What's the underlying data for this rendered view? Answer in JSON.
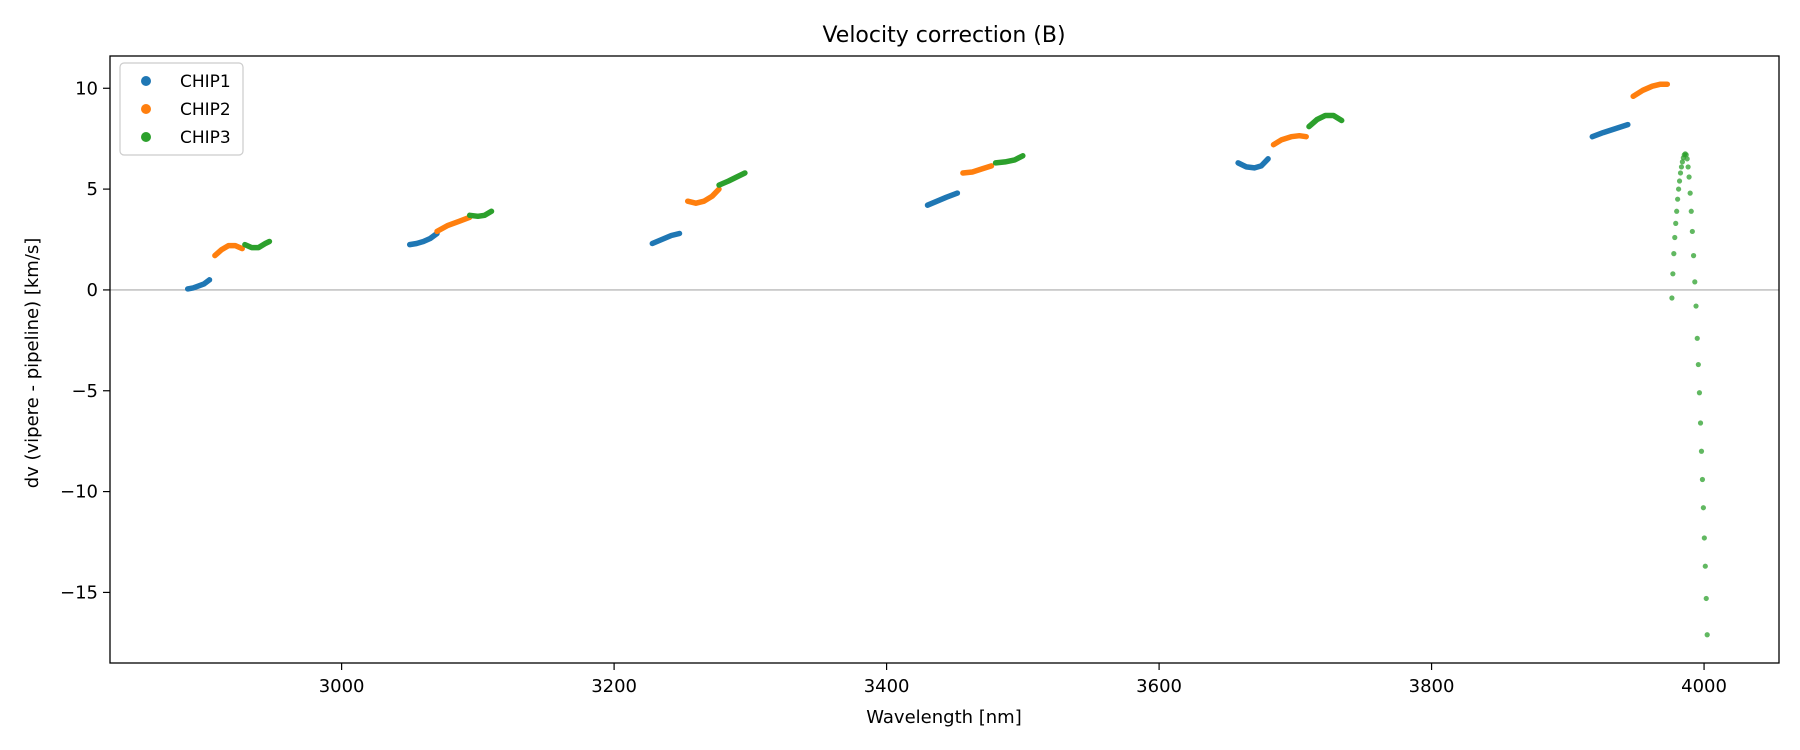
{
  "chart_data": {
    "type": "scatter",
    "title": "Velocity correction (B)",
    "xlabel": "Wavelength [nm]",
    "ylabel": "dv (vipere - pipeline) [km/s]",
    "xlim": [
      2830,
      4055
    ],
    "ylim": [
      -18.5,
      11.6
    ],
    "xticks": [
      3000,
      3200,
      3400,
      3600,
      3800,
      4000
    ],
    "yticks": [
      10,
      5,
      0,
      -5,
      -10,
      -15
    ],
    "ytick_labels": [
      "10",
      "5",
      "0",
      "−5",
      "−10",
      "−15"
    ],
    "zero_line": true,
    "grid": false,
    "legend": {
      "placement": "top-left",
      "entries": [
        "CHIP1",
        "CHIP2",
        "CHIP3"
      ]
    },
    "colors": {
      "CHIP1": "#1f77b4",
      "CHIP2": "#ff7f0e",
      "CHIP3": "#2ca02c",
      "zero_line": "#aaaaaa"
    },
    "series": [
      {
        "name": "CHIP1",
        "segments": [
          [
            [
              2887,
              0.05
            ],
            [
              2891,
              0.1
            ],
            [
              2895,
              0.2
            ],
            [
              2899,
              0.3
            ],
            [
              2903,
              0.5
            ]
          ],
          [
            [
              3050,
              2.25
            ],
            [
              3055,
              2.3
            ],
            [
              3060,
              2.4
            ],
            [
              3065,
              2.55
            ],
            [
              3070,
              2.8
            ]
          ],
          [
            [
              3228,
              2.3
            ],
            [
              3235,
              2.5
            ],
            [
              3242,
              2.7
            ],
            [
              3248,
              2.8
            ]
          ],
          [
            [
              3430,
              4.2
            ],
            [
              3437,
              4.4
            ],
            [
              3444,
              4.6
            ],
            [
              3452,
              4.8
            ]
          ],
          [
            [
              3658,
              6.3
            ],
            [
              3664,
              6.1
            ],
            [
              3670,
              6.05
            ],
            [
              3675,
              6.15
            ],
            [
              3680,
              6.5
            ]
          ],
          [
            [
              3918,
              7.6
            ],
            [
              3926,
              7.8
            ],
            [
              3935,
              8.0
            ],
            [
              3944,
              8.2
            ]
          ]
        ]
      },
      {
        "name": "CHIP2",
        "segments": [
          [
            [
              2907,
              1.7
            ],
            [
              2912,
              2.0
            ],
            [
              2917,
              2.2
            ],
            [
              2922,
              2.2
            ],
            [
              2927,
              2.05
            ]
          ],
          [
            [
              3070,
              2.9
            ],
            [
              3078,
              3.2
            ],
            [
              3086,
              3.4
            ],
            [
              3094,
              3.6
            ]
          ],
          [
            [
              3254,
              4.4
            ],
            [
              3260,
              4.3
            ],
            [
              3266,
              4.4
            ],
            [
              3272,
              4.65
            ],
            [
              3277,
              5.0
            ]
          ],
          [
            [
              3456,
              5.8
            ],
            [
              3463,
              5.85
            ],
            [
              3470,
              6.0
            ],
            [
              3477,
              6.15
            ]
          ],
          [
            [
              3684,
              7.2
            ],
            [
              3690,
              7.45
            ],
            [
              3697,
              7.6
            ],
            [
              3703,
              7.65
            ],
            [
              3708,
              7.6
            ]
          ],
          [
            [
              3948,
              9.6
            ],
            [
              3955,
              9.9
            ],
            [
              3962,
              10.1
            ],
            [
              3968,
              10.2
            ],
            [
              3973,
              10.2
            ]
          ]
        ]
      },
      {
        "name": "CHIP3",
        "segments": [
          [
            [
              2929,
              2.25
            ],
            [
              2934,
              2.1
            ],
            [
              2939,
              2.1
            ],
            [
              2944,
              2.3
            ],
            [
              2947,
              2.4
            ]
          ],
          [
            [
              3094,
              3.7
            ],
            [
              3100,
              3.65
            ],
            [
              3105,
              3.7
            ],
            [
              3110,
              3.9
            ]
          ],
          [
            [
              3277,
              5.2
            ],
            [
              3284,
              5.4
            ],
            [
              3290,
              5.6
            ],
            [
              3296,
              5.8
            ]
          ],
          [
            [
              3480,
              6.3
            ],
            [
              3487,
              6.35
            ],
            [
              3494,
              6.45
            ],
            [
              3500,
              6.65
            ]
          ],
          [
            [
              3710,
              8.1
            ],
            [
              3716,
              8.45
            ],
            [
              3722,
              8.65
            ],
            [
              3728,
              8.65
            ],
            [
              3734,
              8.4
            ]
          ],
          [
            [
              3976.4,
              -0.4
            ],
            [
              3977.1,
              0.8
            ],
            [
              3977.8,
              1.8
            ],
            [
              3978.5,
              2.6
            ],
            [
              3979.2,
              3.3
            ],
            [
              3979.9,
              3.9
            ],
            [
              3980.6,
              4.5
            ],
            [
              3981.3,
              5.0
            ],
            [
              3982.0,
              5.4
            ],
            [
              3982.7,
              5.8
            ],
            [
              3983.4,
              6.1
            ],
            [
              3984.1,
              6.35
            ],
            [
              3984.8,
              6.55
            ],
            [
              3985.5,
              6.7
            ],
            [
              3986.2,
              6.75
            ],
            [
              3986.9,
              6.7
            ],
            [
              3987.6,
              6.5
            ],
            [
              3988.3,
              6.1
            ],
            [
              3989.0,
              5.6
            ],
            [
              3989.8,
              4.8
            ],
            [
              3990.6,
              3.9
            ],
            [
              3991.4,
              2.9
            ],
            [
              3992.3,
              1.7
            ],
            [
              3993.2,
              0.4
            ],
            [
              3994.1,
              -0.8
            ],
            [
              3995.0,
              -2.4
            ],
            [
              3995.8,
              -3.7
            ],
            [
              3996.6,
              -5.1
            ],
            [
              3997.4,
              -6.6
            ],
            [
              3998.1,
              -8.0
            ],
            [
              3998.8,
              -9.4
            ],
            [
              3999.5,
              -10.8
            ],
            [
              4000.2,
              -12.3
            ],
            [
              4000.9,
              -13.7
            ],
            [
              4001.6,
              -15.3
            ],
            [
              4002.3,
              -17.1
            ]
          ]
        ]
      }
    ]
  }
}
